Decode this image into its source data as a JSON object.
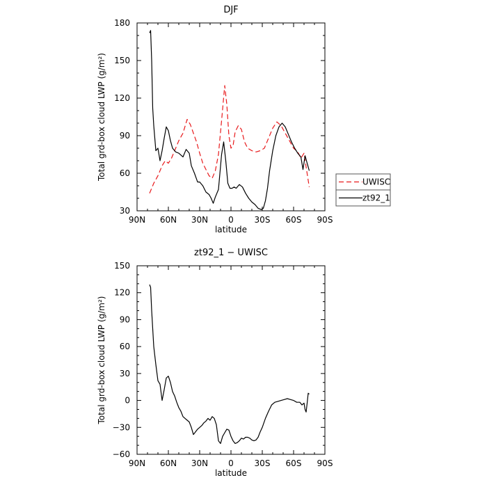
{
  "chart_data": [
    {
      "type": "line",
      "title": "DJF",
      "xlabel": "latitude",
      "ylabel": "Total grd-box cloud LWP (g/m²)",
      "xlim": [
        90,
        -90
      ],
      "ylim": [
        30,
        180
      ],
      "xticks": [
        90,
        60,
        30,
        0,
        -30,
        -60,
        -90
      ],
      "xtick_labels": [
        "90N",
        "60N",
        "30N",
        "0",
        "30S",
        "60S",
        "90S"
      ],
      "yticks": [
        30,
        60,
        90,
        120,
        150,
        180
      ],
      "ytick_labels": [
        "30",
        "60",
        "90",
        "120",
        "150",
        "180"
      ],
      "legend_position": "right",
      "series": [
        {
          "name": "UWISC",
          "color": "#e8191b",
          "dash": "dashed",
          "x": [
            78,
            74,
            70,
            66,
            63,
            60,
            57,
            54,
            50,
            46,
            42,
            39,
            36,
            33,
            30,
            27,
            24,
            21,
            18,
            15,
            12,
            9,
            6,
            4,
            2,
            0,
            -2,
            -4,
            -7,
            -10,
            -13,
            -16,
            -20,
            -24,
            -28,
            -32,
            -36,
            -40,
            -44,
            -48,
            -52,
            -56,
            -60,
            -64,
            -67,
            -70,
            -72,
            -75
          ],
          "y": [
            44,
            52,
            58,
            66,
            70,
            68,
            72,
            78,
            86,
            92,
            103,
            99,
            92,
            85,
            76,
            68,
            63,
            58,
            56,
            62,
            75,
            102,
            130,
            115,
            90,
            80,
            82,
            93,
            98,
            95,
            85,
            80,
            78,
            77,
            78,
            80,
            88,
            96,
            101,
            98,
            92,
            86,
            80,
            77,
            72,
            76,
            65,
            49
          ]
        },
        {
          "name": "zt92_1",
          "color": "#000000",
          "dash": "solid",
          "x": [
            78,
            77,
            76,
            75,
            74,
            72,
            70,
            68,
            66,
            64,
            62,
            60,
            58,
            56,
            53,
            50,
            46,
            43,
            40,
            38,
            35,
            32,
            30,
            27,
            24,
            21,
            19,
            17,
            15,
            12,
            9,
            7,
            5,
            3,
            1,
            -1,
            -3,
            -5,
            -8,
            -11,
            -14,
            -17,
            -20,
            -23,
            -26,
            -29,
            -31,
            -33,
            -35,
            -37,
            -40,
            -43,
            -46,
            -49,
            -52,
            -55,
            -58,
            -61,
            -64,
            -67,
            -69,
            -71,
            -73,
            -75
          ],
          "y": [
            172,
            174,
            150,
            112,
            98,
            78,
            80,
            70,
            78,
            88,
            97,
            94,
            86,
            80,
            77,
            76,
            73,
            79,
            76,
            66,
            60,
            53,
            53,
            50,
            45,
            43,
            40,
            36,
            41,
            47,
            75,
            85,
            70,
            52,
            48,
            48,
            49,
            48,
            51,
            49,
            44,
            40,
            37,
            35,
            32,
            31,
            32,
            38,
            48,
            62,
            78,
            90,
            97,
            100,
            97,
            91,
            85,
            80,
            76,
            73,
            63,
            74,
            68,
            62
          ]
        }
      ]
    },
    {
      "type": "line",
      "title": "zt92_1 − UWISC",
      "xlabel": "latitude",
      "ylabel": "Total grd-box cloud LWP (g/m²)",
      "xlim": [
        90,
        -90
      ],
      "ylim": [
        -60,
        150
      ],
      "xticks": [
        90,
        60,
        30,
        0,
        -30,
        -60,
        -90
      ],
      "xtick_labels": [
        "90N",
        "60N",
        "30N",
        "0",
        "30S",
        "60S",
        "90S"
      ],
      "yticks": [
        -60,
        -30,
        0,
        30,
        60,
        90,
        120,
        150
      ],
      "ytick_labels": [
        "−60",
        "−30",
        "0",
        "30",
        "60",
        "90",
        "120",
        "150"
      ],
      "series": [
        {
          "color": "#000000",
          "x": [
            78,
            77,
            76,
            75,
            74,
            72,
            70,
            68,
            66,
            64,
            62,
            60,
            58,
            56,
            54,
            52,
            50,
            48,
            46,
            44,
            42,
            40,
            38,
            36,
            34,
            32,
            30,
            28,
            26,
            24,
            22,
            20,
            18,
            16,
            14,
            12,
            10,
            8,
            6,
            4,
            2,
            0,
            -2,
            -4,
            -6,
            -8,
            -10,
            -12,
            -14,
            -16,
            -18,
            -20,
            -22,
            -24,
            -26,
            -28,
            -30,
            -33,
            -36,
            -39,
            -42,
            -45,
            -48,
            -51,
            -54,
            -57,
            -60,
            -63,
            -66,
            -68,
            -70,
            -71,
            -72,
            -73,
            -74,
            -75
          ],
          "y": [
            129,
            126,
            100,
            80,
            60,
            40,
            22,
            18,
            0,
            12,
            25,
            27,
            20,
            10,
            5,
            -2,
            -8,
            -12,
            -18,
            -20,
            -22,
            -24,
            -30,
            -38,
            -35,
            -32,
            -30,
            -28,
            -25,
            -23,
            -20,
            -22,
            -18,
            -20,
            -27,
            -45,
            -48,
            -40,
            -36,
            -32,
            -33,
            -40,
            -45,
            -48,
            -47,
            -45,
            -42,
            -43,
            -41,
            -41,
            -42,
            -44,
            -45,
            -44,
            -41,
            -35,
            -30,
            -20,
            -12,
            -5,
            -2,
            -1,
            0,
            1,
            2,
            1,
            0,
            -2,
            -2,
            -5,
            -3,
            -10,
            -13,
            -3,
            8,
            7
          ]
        }
      ]
    }
  ]
}
